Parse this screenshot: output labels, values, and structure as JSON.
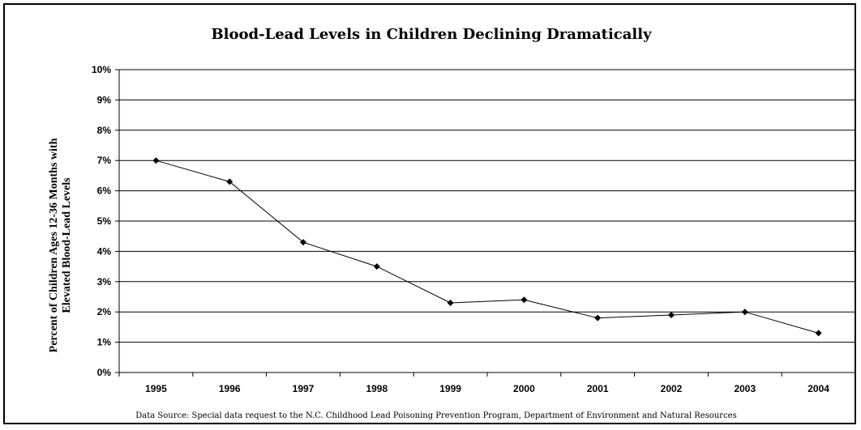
{
  "chart_data": {
    "type": "line",
    "title": "Blood-Lead Levels in Children Declining Dramatically",
    "ylabel": [
      "Percent of Children Ages 12-36 Months with",
      "Elevated Blood-Lead Levels"
    ],
    "xlabel": "",
    "source": "Data Source: Special data request to the N.C. Childhood Lead Poisoning Prevention Program, Department of Environment and Natural Resources",
    "categories": [
      "1995",
      "1996",
      "1997",
      "1998",
      "1999",
      "2000",
      "2001",
      "2002",
      "2003",
      "2004"
    ],
    "values": [
      7.0,
      6.3,
      4.3,
      3.5,
      2.3,
      2.4,
      1.8,
      1.9,
      2.0,
      1.3
    ],
    "ylim": [
      0,
      10
    ],
    "yticks": [
      0,
      1,
      2,
      3,
      4,
      5,
      6,
      7,
      8,
      9,
      10
    ],
    "ytick_labels": [
      "0%",
      "1%",
      "2%",
      "3%",
      "4%",
      "5%",
      "6%",
      "7%",
      "8%",
      "9%",
      "10%"
    ],
    "grid": "horizontal",
    "line_color": "#000000",
    "marker": "diamond"
  }
}
